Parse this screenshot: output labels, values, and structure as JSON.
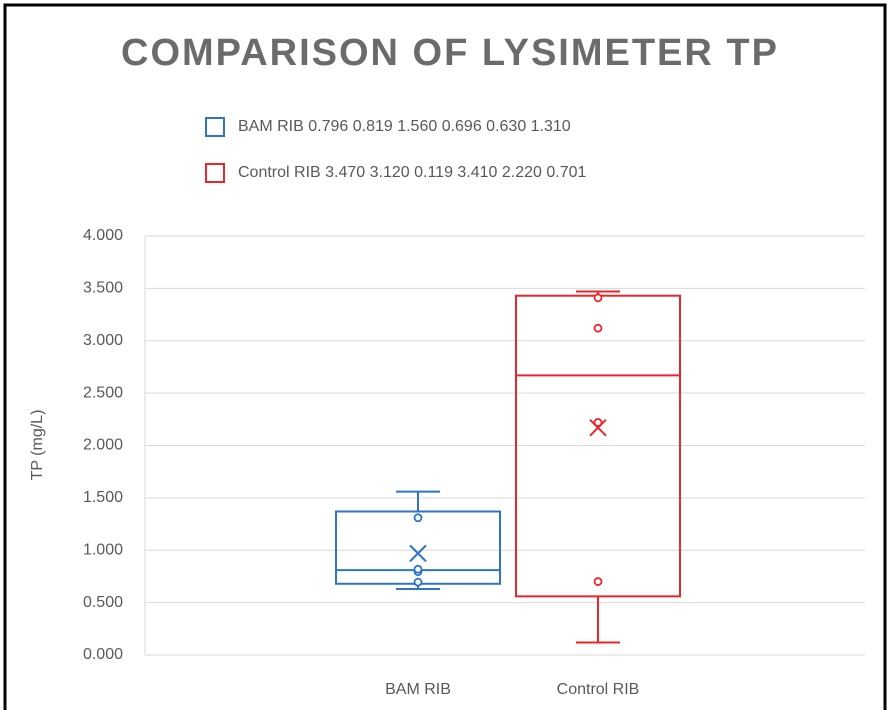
{
  "chart_data": {
    "type": "box",
    "title": "COMPARISON OF LYSIMETER TP",
    "y_label": "TP  (mg/L)",
    "categories": [
      "BAM RIB",
      "Control RIB"
    ],
    "series": [
      {
        "name": "BAM RIB 0.796 0.819 1.560 0.696 0.630 1.310",
        "color": "#2e75c6",
        "values": [
          0.796,
          0.819,
          1.56,
          0.696,
          0.63,
          1.31
        ],
        "min": 0.63,
        "q1": 0.68,
        "median": 0.81,
        "q3": 1.37,
        "max": 1.56,
        "mean": 0.97
      },
      {
        "name": "Control RIB 3.470 3.120 0.119 3.410 2.220 0.701",
        "color": "#e8262b",
        "values": [
          3.47,
          3.12,
          0.119,
          3.41,
          2.22,
          0.701
        ],
        "min": 0.119,
        "q1": 0.56,
        "median": 2.67,
        "q3": 3.43,
        "max": 3.47,
        "mean": 2.17
      }
    ],
    "ylim": [
      0,
      4
    ],
    "yticks": [
      {
        "value": 0,
        "label": "0.000"
      },
      {
        "value": 0.5,
        "label": "0.500"
      },
      {
        "value": 1,
        "label": "1.000"
      },
      {
        "value": 1.5,
        "label": "1.500"
      },
      {
        "value": 2,
        "label": "2.000"
      },
      {
        "value": 2.5,
        "label": "2.500"
      },
      {
        "value": 3,
        "label": "3.000"
      },
      {
        "value": 3.5,
        "label": "3.500"
      },
      {
        "value": 4,
        "label": "4.000"
      }
    ],
    "grid": true
  }
}
